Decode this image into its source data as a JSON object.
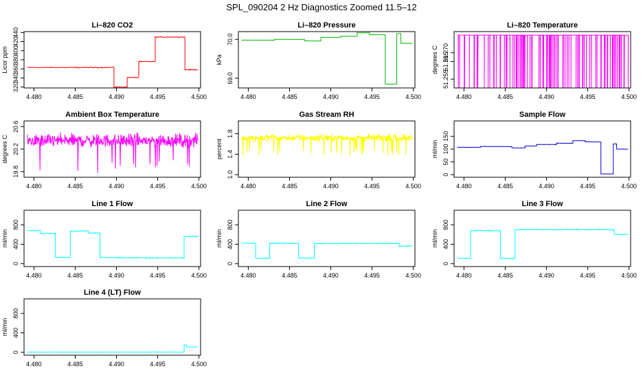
{
  "figure": {
    "title": "SPL_090204  2 Hz Diagnostics Zoomed 11.5–12"
  },
  "chart_data": [
    {
      "type": "line",
      "title": "Li–820 CO2",
      "xlabel": "",
      "ylabel": "Licor ppm",
      "xlim": [
        4.4788,
        4.5002
      ],
      "ylim": [
        318,
        442
      ],
      "xticks": [
        "4.480",
        "4.485",
        "4.490",
        "4.495",
        "4.500"
      ],
      "yticks": [
        "320",
        "340",
        "360",
        "380",
        "400",
        "420",
        "440"
      ],
      "color": "#ff0000",
      "noise": 1.5,
      "segments": [
        [
          4.4792,
          4.4897,
          363
        ],
        [
          4.4897,
          4.4913,
          320
        ],
        [
          4.4913,
          4.4927,
          341
        ],
        [
          4.4927,
          4.4947,
          376
        ],
        [
          4.4947,
          4.4983,
          430
        ],
        [
          4.4983,
          4.4999,
          358
        ]
      ]
    },
    {
      "type": "line",
      "title": "Li–820 Pressure",
      "xlabel": "",
      "ylabel": "kPa",
      "xlim": [
        4.4788,
        4.5002
      ],
      "ylim": [
        68.75,
        70.2
      ],
      "xticks": [
        "4.480",
        "4.485",
        "4.490",
        "4.495",
        "4.500"
      ],
      "yticks": [
        "69.0",
        "70.0"
      ],
      "ytick_values": [
        69.0,
        70.0
      ],
      "color": "#00bb00",
      "noise": 0.006,
      "segments": [
        [
          4.4792,
          4.4832,
          69.98
        ],
        [
          4.4832,
          4.4868,
          70.0
        ],
        [
          4.4868,
          4.4888,
          69.96
        ],
        [
          4.4888,
          4.4912,
          70.05
        ],
        [
          4.4912,
          4.4932,
          70.08
        ],
        [
          4.4932,
          4.4947,
          70.17
        ],
        [
          4.4947,
          4.4966,
          70.12
        ],
        [
          4.4966,
          4.498,
          68.85
        ],
        [
          4.498,
          4.4985,
          70.15
        ],
        [
          4.4985,
          4.4999,
          69.9
        ]
      ]
    },
    {
      "type": "line",
      "title": "Li–820 Temperature",
      "xlabel": "",
      "ylabel": "degrees C",
      "xlim": [
        4.4788,
        4.5002
      ],
      "ylim": [
        51.25,
        51.282
      ],
      "xticks": [
        "4.480",
        "4.485",
        "4.490",
        "4.495",
        "4.500"
      ],
      "yticks": [
        "51.255",
        "51.265",
        "51.270"
      ],
      "ytick_values": [
        51.255,
        51.265,
        51.27
      ],
      "color": "#ff00ff",
      "base": 51.28,
      "low": 51.25,
      "spike_rate": 0.22,
      "points": 400
    },
    {
      "type": "line",
      "title": "Ambient Box Temperature",
      "xlabel": "",
      "ylabel": "degrees C",
      "xlim": [
        4.4788,
        4.5002
      ],
      "ylim": [
        19.7,
        20.7
      ],
      "xticks": [
        "4.480",
        "4.485",
        "4.490",
        "4.495",
        "4.500"
      ],
      "yticks": [
        "19.8",
        "20.2",
        "20.6"
      ],
      "ytick_values": [
        19.8,
        20.2,
        20.6
      ],
      "color": "#ff00ff",
      "center": 20.35,
      "amplitude": 0.17,
      "points": 500
    },
    {
      "type": "line",
      "title": "Gas Stream RH",
      "xlabel": "",
      "ylabel": "percent",
      "xlim": [
        4.4788,
        4.5002
      ],
      "ylim": [
        0.95,
        2.05
      ],
      "xticks": [
        "4.480",
        "4.485",
        "4.490",
        "4.495",
        "4.500"
      ],
      "yticks": [
        "1.0",
        "1.4",
        "1.8"
      ],
      "ytick_values": [
        1.0,
        1.4,
        1.8
      ],
      "color": "#ffff00",
      "center": 1.72,
      "amplitude": 0.1,
      "points": 500
    },
    {
      "type": "line",
      "title": "Sample Flow",
      "xlabel": "",
      "ylabel": "ml/min",
      "xlim": [
        4.4788,
        4.5002
      ],
      "ylim": [
        -10,
        210
      ],
      "xticks": [
        "4.480",
        "4.485",
        "4.490",
        "4.495",
        "4.500"
      ],
      "yticks": [
        "0",
        "50",
        "100",
        "150"
      ],
      "ytick_values": [
        0,
        50,
        100,
        150
      ],
      "color": "#0000cc",
      "noise": 1,
      "segments": [
        [
          4.4792,
          4.482,
          107
        ],
        [
          4.482,
          4.4858,
          110
        ],
        [
          4.4858,
          4.4874,
          105
        ],
        [
          4.4874,
          4.4888,
          112
        ],
        [
          4.4888,
          4.4912,
          118
        ],
        [
          4.4912,
          4.4932,
          123
        ],
        [
          4.4932,
          4.4947,
          133
        ],
        [
          4.4947,
          4.4966,
          128
        ],
        [
          4.4966,
          4.4981,
          3
        ],
        [
          4.4981,
          4.4985,
          120
        ],
        [
          4.4985,
          4.4999,
          100
        ]
      ]
    },
    {
      "type": "line",
      "title": "Line 1 Flow",
      "xlabel": "",
      "ylabel": "ml/min",
      "xlim": [
        4.4788,
        4.5002
      ],
      "ylim": [
        -60,
        1100
      ],
      "xticks": [
        "4.480",
        "4.485",
        "4.490",
        "4.495",
        "4.500"
      ],
      "yticks": [
        "0",
        "400",
        "800"
      ],
      "ytick_values": [
        0,
        400,
        800
      ],
      "color": "#00ffff",
      "noise": 18,
      "segments": [
        [
          4.4792,
          4.4808,
          680
        ],
        [
          4.4808,
          4.4826,
          620
        ],
        [
          4.4826,
          4.4844,
          130
        ],
        [
          4.4844,
          4.4866,
          670
        ],
        [
          4.4866,
          4.488,
          630
        ],
        [
          4.488,
          4.4903,
          125
        ],
        [
          4.4903,
          4.4982,
          120
        ],
        [
          4.4982,
          4.4999,
          560
        ]
      ]
    },
    {
      "type": "line",
      "title": "Line 2 Flow",
      "xlabel": "",
      "ylabel": "ml/min",
      "xlim": [
        4.4788,
        4.5002
      ],
      "ylim": [
        -60,
        1100
      ],
      "xticks": [
        "4.480",
        "4.485",
        "4.490",
        "4.495",
        "4.500"
      ],
      "yticks": [
        "0",
        "400",
        "800"
      ],
      "ytick_values": [
        0,
        400,
        800
      ],
      "color": "#00ffff",
      "noise": 15,
      "segments": [
        [
          4.4792,
          4.4809,
          420
        ],
        [
          4.4809,
          4.4826,
          110
        ],
        [
          4.4826,
          4.4861,
          420
        ],
        [
          4.4861,
          4.488,
          115
        ],
        [
          4.488,
          4.4983,
          415
        ],
        [
          4.4983,
          4.4999,
          360
        ]
      ]
    },
    {
      "type": "line",
      "title": "Line 3 Flow",
      "xlabel": "",
      "ylabel": "ml/min",
      "xlim": [
        4.4788,
        4.5002
      ],
      "ylim": [
        -60,
        1100
      ],
      "xticks": [
        "4.480",
        "4.485",
        "4.490",
        "4.495",
        "4.500"
      ],
      "yticks": [
        "0",
        "400",
        "800"
      ],
      "ytick_values": [
        0,
        400,
        800
      ],
      "color": "#00ffff",
      "noise": 18,
      "segments": [
        [
          4.4792,
          4.4808,
          110
        ],
        [
          4.4808,
          4.4844,
          680
        ],
        [
          4.4844,
          4.4862,
          110
        ],
        [
          4.4862,
          4.4982,
          700
        ],
        [
          4.4982,
          4.4999,
          600
        ]
      ]
    },
    {
      "type": "line",
      "title": "Line 4 (LT) Flow",
      "xlabel": "",
      "ylabel": "ml/min",
      "xlim": [
        4.4788,
        4.5002
      ],
      "ylim": [
        -60,
        1100
      ],
      "xticks": [
        "4.480",
        "4.485",
        "4.490",
        "4.495",
        "4.500"
      ],
      "yticks": [
        "0",
        "400",
        "800"
      ],
      "ytick_values": [
        0,
        400,
        800
      ],
      "color": "#00ffff",
      "noise": 2,
      "segments": [
        [
          4.4792,
          4.4982,
          5
        ],
        [
          4.4982,
          4.4985,
          150
        ],
        [
          4.4985,
          4.4999,
          110
        ]
      ]
    }
  ]
}
